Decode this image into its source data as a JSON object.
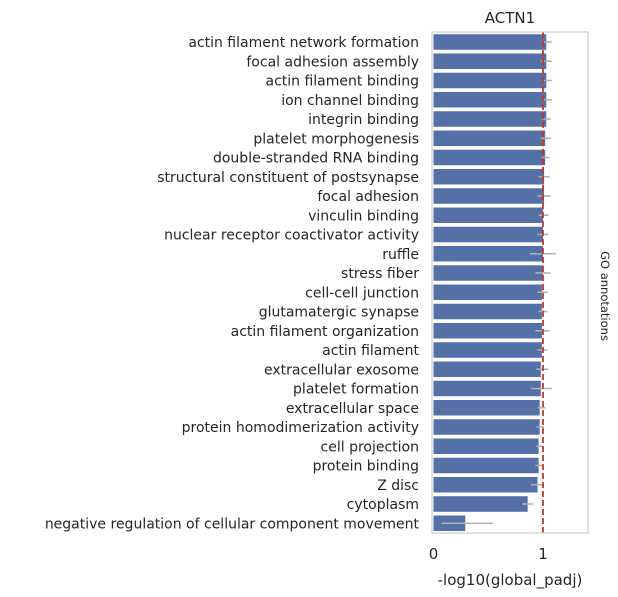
{
  "chart_data": {
    "type": "bar",
    "orientation": "horizontal",
    "title": "ACTN1",
    "xlabel": "-log10(global_padj)",
    "ylabel": "",
    "side_label": "GO annotations",
    "xlim": [
      0,
      1.4
    ],
    "xticks": [
      0,
      1
    ],
    "grid": false,
    "legend": "none",
    "reference_line": {
      "x": 1.0,
      "style": "dashed",
      "color": "#c0392b"
    },
    "bar_color": "#5470a6",
    "errorbar_color": "#b0b0b0",
    "categories": [
      "actin filament network formation",
      "focal adhesion assembly",
      "actin filament binding",
      "ion channel binding",
      "integrin binding",
      "platelet morphogenesis",
      "double-stranded RNA binding",
      "structural constituent of postsynapse",
      "focal adhesion",
      "vinculin binding",
      "nuclear receptor coactivator activity",
      "ruffle",
      "stress fiber",
      "cell-cell junction",
      "glutamatergic synapse",
      "actin filament organization",
      "actin filament",
      "extracellular exosome",
      "platelet formation",
      "extracellular space",
      "protein homodimerization activity",
      "cell projection",
      "protein binding",
      "Z disc",
      "cytoplasm",
      "negative regulation of cellular component movement"
    ],
    "values": [
      1.03,
      1.03,
      1.03,
      1.03,
      1.03,
      1.02,
      1.02,
      1.01,
      1.01,
      1.0,
      1.0,
      1.0,
      1.0,
      0.99,
      0.99,
      0.99,
      0.99,
      0.98,
      0.98,
      0.97,
      0.97,
      0.96,
      0.96,
      0.95,
      0.86,
      0.29
    ],
    "error_low": [
      0.99,
      0.98,
      0.99,
      0.99,
      0.99,
      0.98,
      0.99,
      0.96,
      0.95,
      0.96,
      0.95,
      0.88,
      0.93,
      0.95,
      0.96,
      0.93,
      0.95,
      0.94,
      0.89,
      0.95,
      0.94,
      0.94,
      0.93,
      0.89,
      0.81,
      0.07
    ],
    "error_high": [
      1.08,
      1.08,
      1.08,
      1.08,
      1.07,
      1.07,
      1.06,
      1.06,
      1.07,
      1.05,
      1.05,
      1.12,
      1.07,
      1.04,
      1.04,
      1.06,
      1.04,
      1.05,
      1.08,
      1.02,
      1.01,
      1.0,
      0.99,
      1.01,
      0.91,
      0.54
    ]
  }
}
